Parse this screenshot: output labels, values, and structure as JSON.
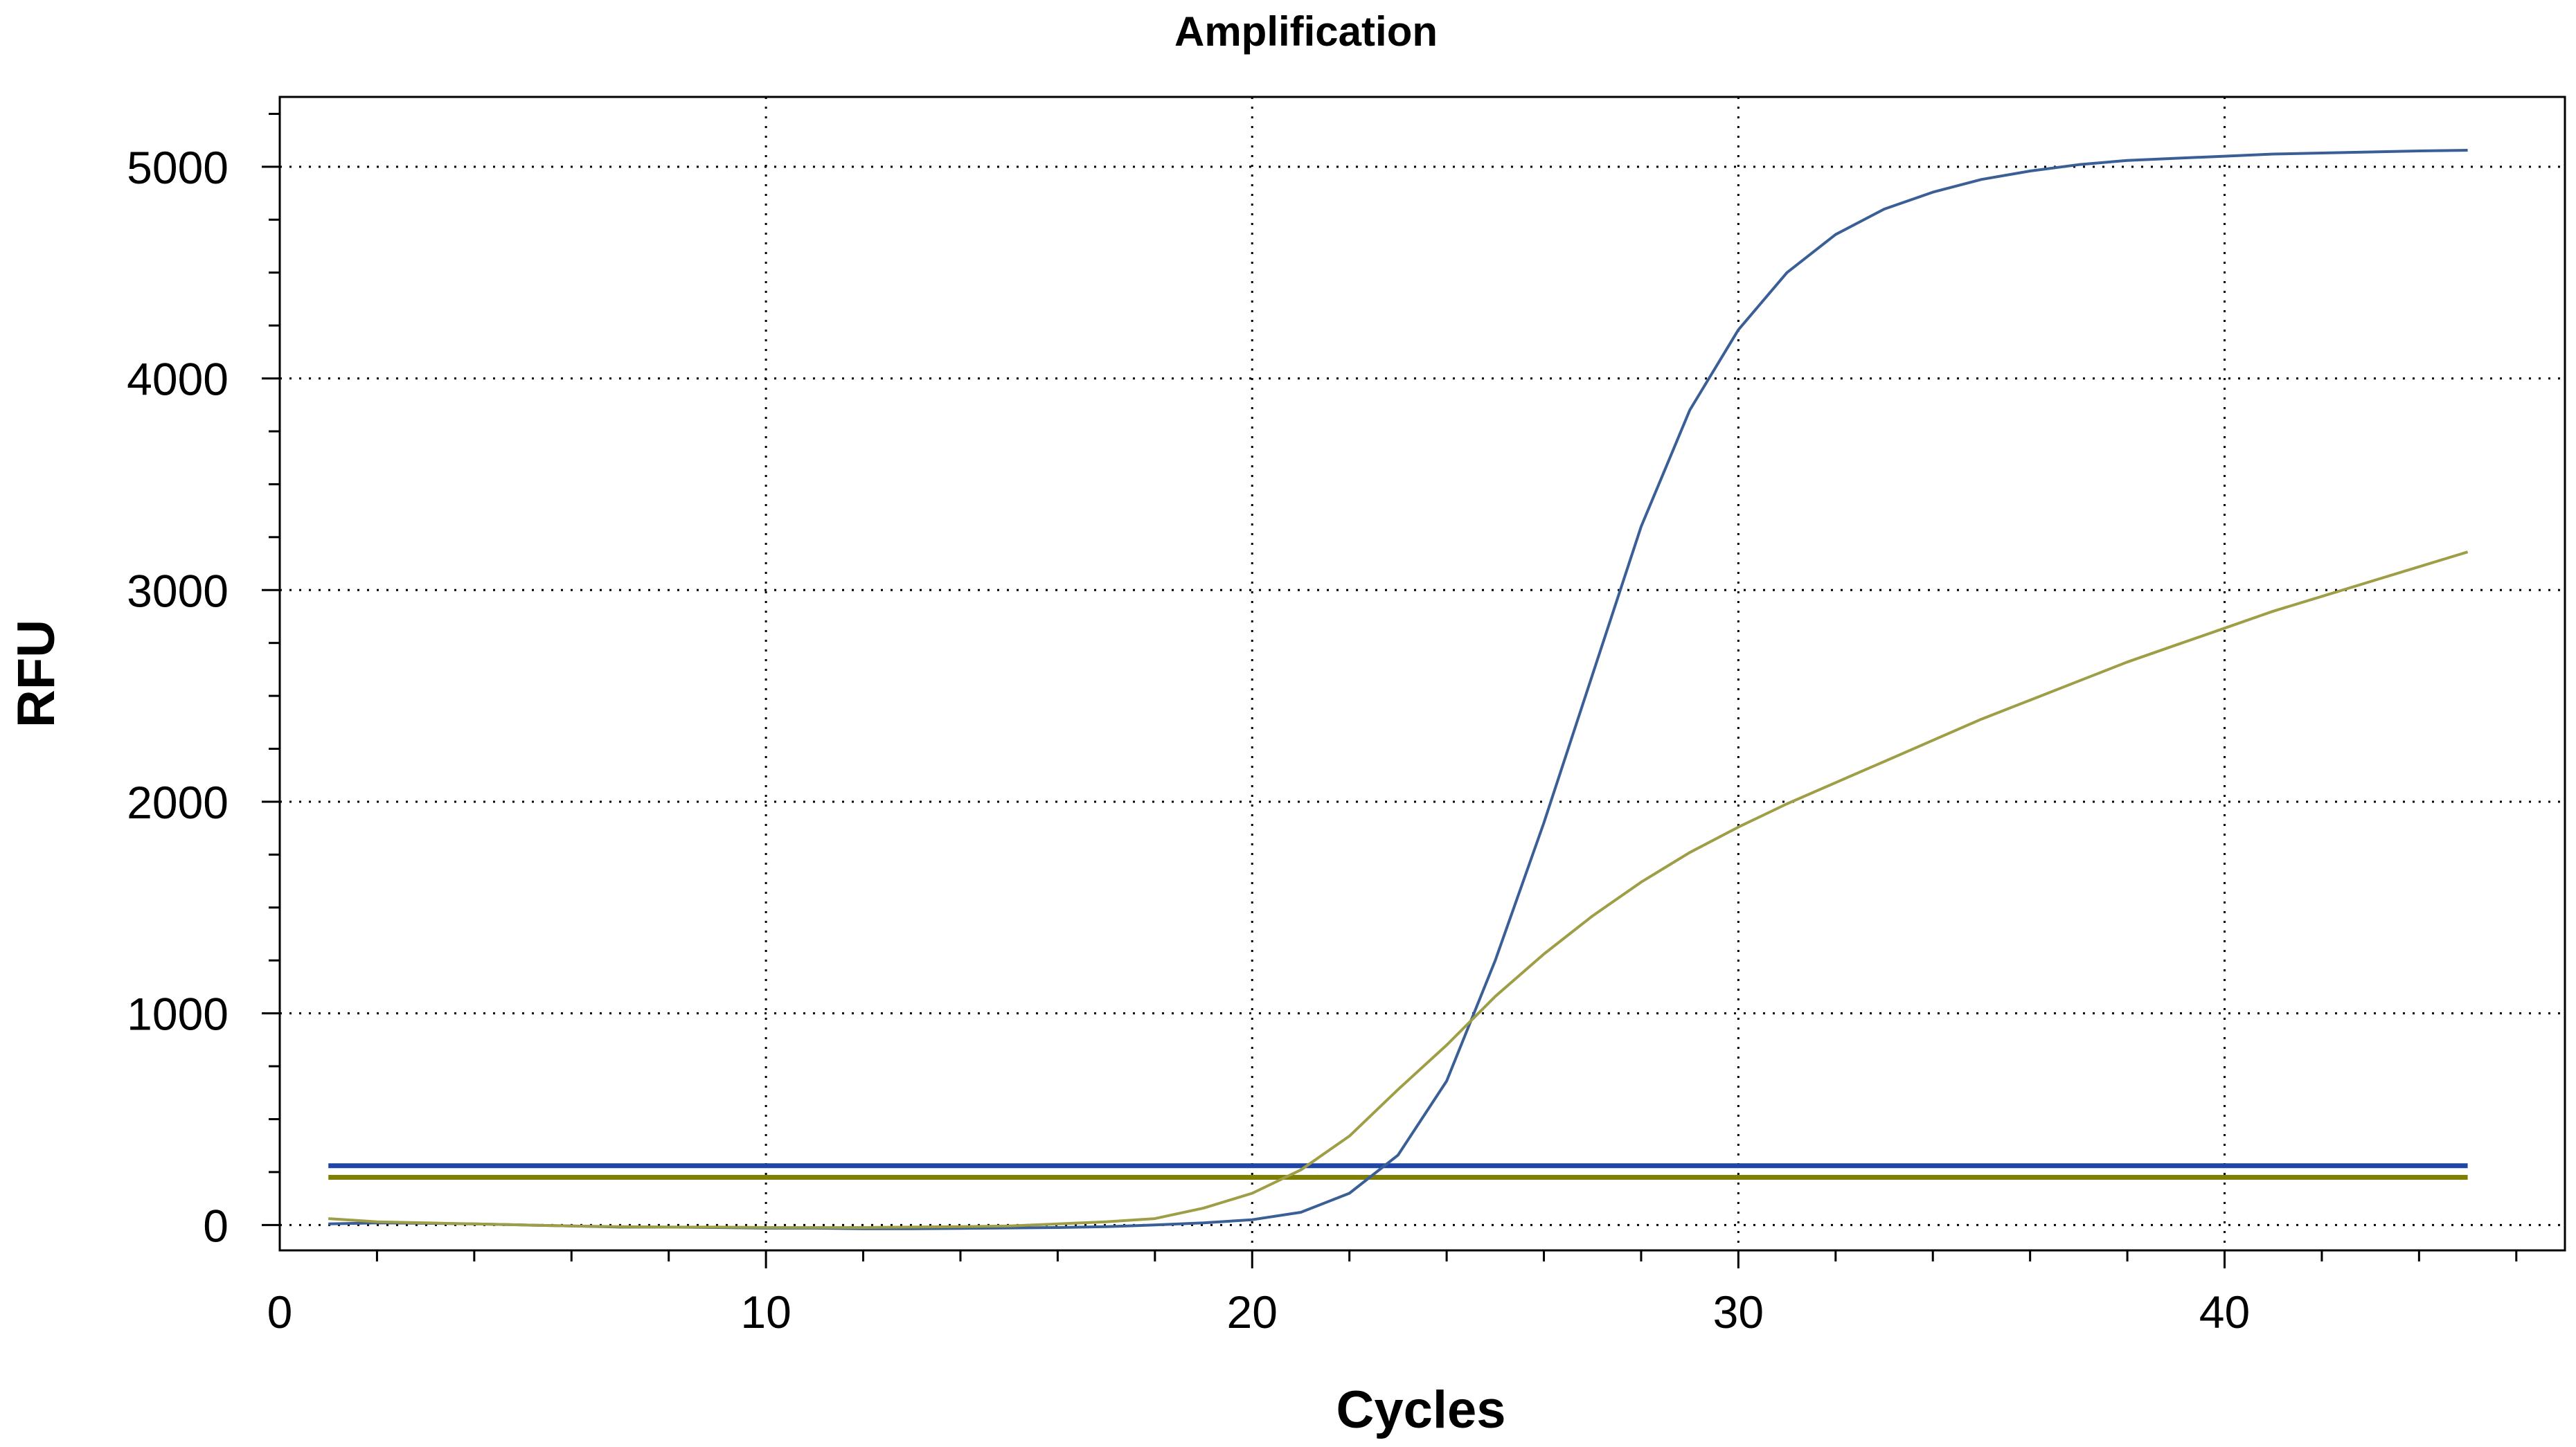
{
  "chart_data": {
    "type": "line",
    "title": "Amplification",
    "xlabel": "Cycles",
    "ylabel": "RFU",
    "xlim": [
      0,
      47
    ],
    "ylim": [
      -120,
      5330
    ],
    "xticks": [
      0,
      10,
      20,
      30,
      40
    ],
    "yticks": [
      0,
      1000,
      2000,
      3000,
      4000,
      5000
    ],
    "xtick_labels": [
      "0",
      "10",
      "20",
      "30",
      "40"
    ],
    "ytick_labels": [
      "0",
      "1000",
      "2000",
      "3000",
      "4000",
      "5000"
    ],
    "grid": true,
    "legend": "none",
    "x": [
      1,
      2,
      3,
      4,
      5,
      6,
      7,
      8,
      9,
      10,
      11,
      12,
      13,
      14,
      15,
      16,
      17,
      18,
      19,
      20,
      21,
      22,
      23,
      24,
      25,
      26,
      27,
      28,
      29,
      30,
      31,
      32,
      33,
      34,
      35,
      36,
      37,
      38,
      39,
      40,
      41,
      42,
      43,
      44,
      45
    ],
    "series": [
      {
        "name": "Blue curve",
        "color": "#3A5F96",
        "values": [
          5,
          10,
          8,
          5,
          0,
          -5,
          -10,
          -10,
          -12,
          -15,
          -15,
          -18,
          -18,
          -16,
          -14,
          -12,
          -8,
          0,
          10,
          25,
          60,
          150,
          330,
          680,
          1250,
          1900,
          2600,
          3300,
          3850,
          4230,
          4500,
          4680,
          4800,
          4880,
          4940,
          4980,
          5010,
          5030,
          5040,
          5050,
          5060,
          5065,
          5070,
          5075,
          5078
        ]
      },
      {
        "name": "Olive curve",
        "color": "#9E9E47",
        "values": [
          30,
          15,
          10,
          5,
          0,
          -5,
          -8,
          -10,
          -10,
          -12,
          -12,
          -12,
          -10,
          -8,
          -5,
          5,
          15,
          30,
          80,
          150,
          260,
          420,
          640,
          850,
          1080,
          1280,
          1460,
          1620,
          1760,
          1880,
          1990,
          2090,
          2190,
          2290,
          2390,
          2480,
          2570,
          2660,
          2740,
          2820,
          2900,
          2970,
          3040,
          3110,
          3180
        ]
      }
    ],
    "thresholds": [
      {
        "name": "Blue threshold",
        "value": 280,
        "color": "#1F45A6"
      },
      {
        "name": "Olive threshold",
        "value": 225,
        "color": "#808000"
      }
    ]
  }
}
